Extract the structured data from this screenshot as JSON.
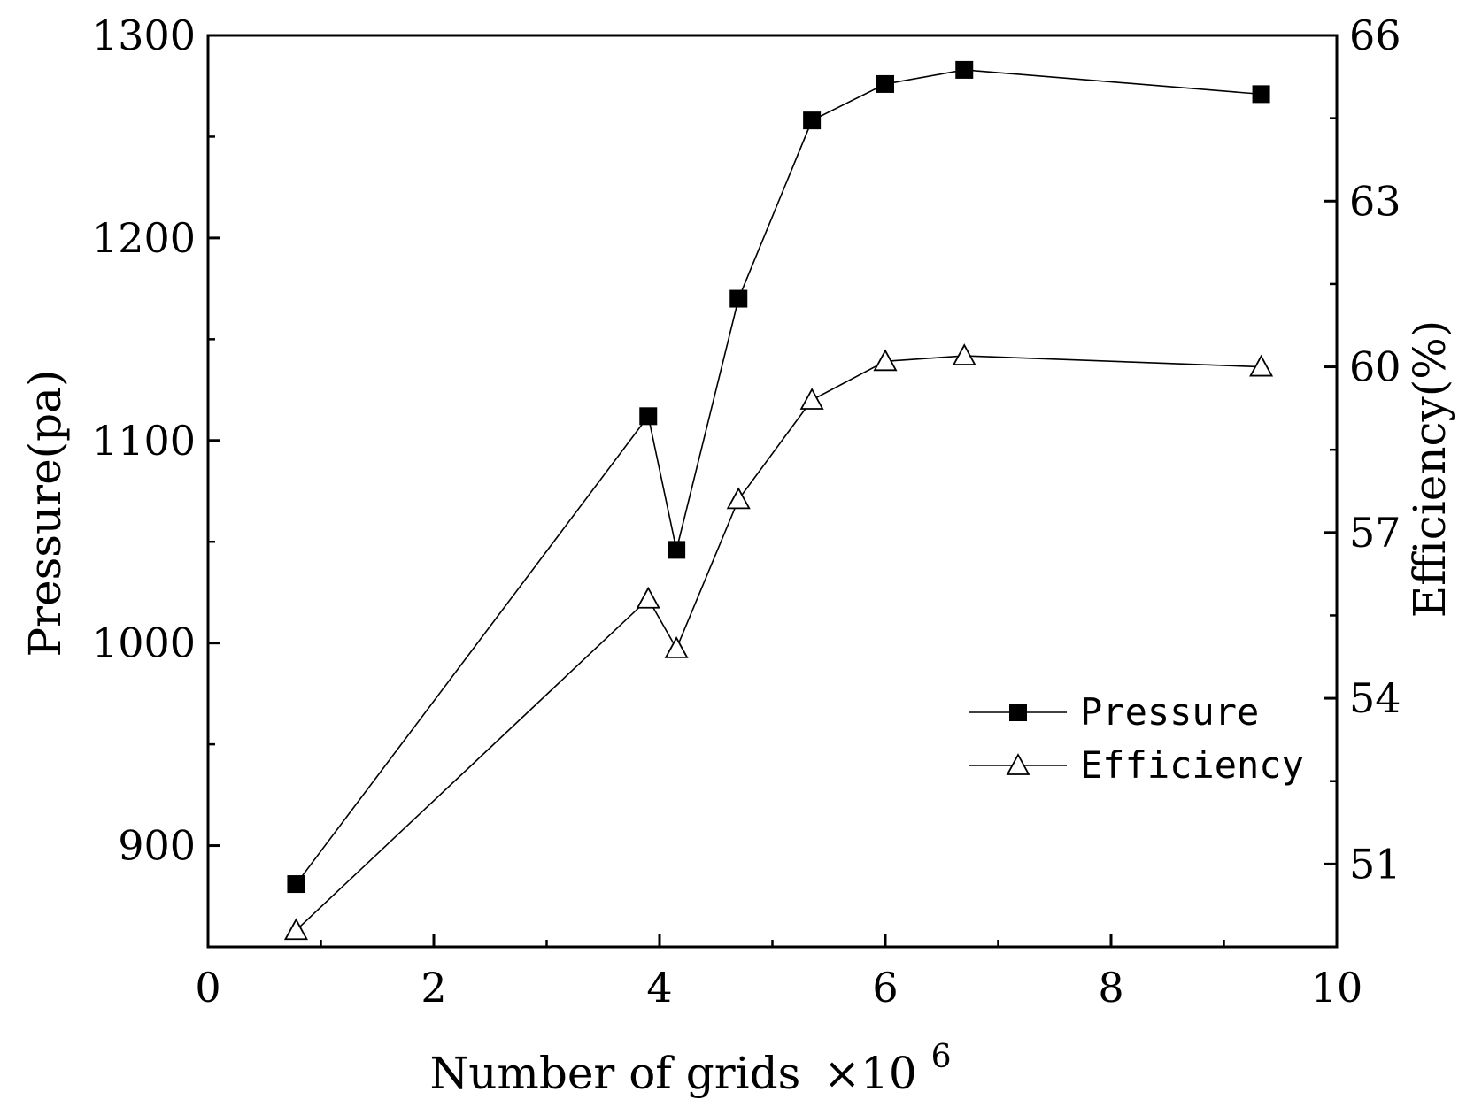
{
  "chart_data": {
    "type": "line",
    "title": "",
    "xlabel_main": "Number of grids",
    "xlabel_suffix": "×10",
    "xlabel_exp": "6",
    "ylabel_left": "Pressure(pa)",
    "ylabel_right": "Efficiency(%)",
    "xlim": [
      0,
      10
    ],
    "ylim_left": [
      850,
      1300
    ],
    "ylim_right": [
      49.5,
      66
    ],
    "x_ticks": [
      "0",
      "2",
      "4",
      "6",
      "8",
      "10"
    ],
    "y_left_ticks": [
      "900",
      "1000",
      "1100",
      "1200",
      "1300"
    ],
    "y_right_ticks": [
      "51",
      "54",
      "57",
      "60",
      "63",
      "66"
    ],
    "x": [
      0.78,
      3.9,
      4.15,
      4.7,
      5.35,
      6.0,
      6.7,
      9.33
    ],
    "series": [
      {
        "name": "Pressure",
        "axis": "left",
        "marker": "filled-square",
        "values": [
          881,
          1112,
          1046,
          1170,
          1258,
          1276,
          1283,
          1271
        ]
      },
      {
        "name": "Efficiency",
        "axis": "right",
        "marker": "open-triangle",
        "values": [
          49.8,
          55.8,
          54.9,
          57.6,
          59.4,
          60.1,
          60.2,
          60.0
        ]
      }
    ],
    "legend": {
      "position": "lower-right",
      "entries": [
        "Pressure",
        "Efficiency"
      ]
    },
    "grid": false,
    "colors": {
      "line": "#000000",
      "background": "#ffffff"
    }
  }
}
